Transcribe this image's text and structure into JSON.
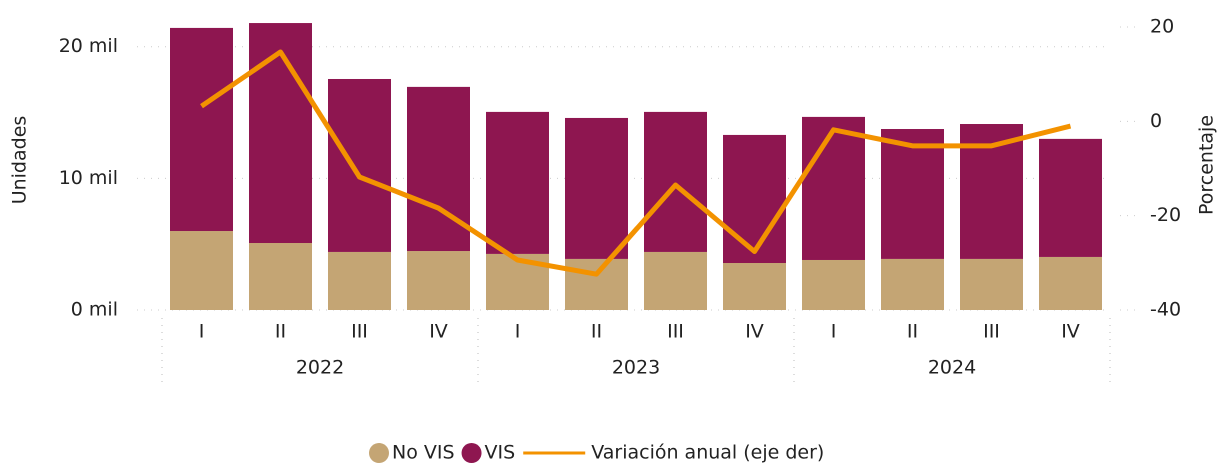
{
  "chart_data": {
    "type": "bar+line",
    "y_label": "Unidades",
    "y2_label": "Porcentaje",
    "categories": [
      "I",
      "II",
      "III",
      "IV",
      "I",
      "II",
      "III",
      "IV",
      "I",
      "II",
      "III",
      "IV"
    ],
    "years": [
      "2022",
      "2023",
      "2024"
    ],
    "series": [
      {
        "name": "No VIS",
        "color": "#c4a574",
        "values": [
          6000,
          5090,
          4410,
          4480,
          4260,
          3880,
          4410,
          3570,
          3800,
          3880,
          3880,
          4030
        ]
      },
      {
        "name": "VIS",
        "color": "#8e1650",
        "values": [
          15430,
          16710,
          13140,
          12470,
          10790,
          10710,
          10640,
          9730,
          10870,
          9870,
          10250,
          8970
        ]
      },
      {
        "name": "Variación anual (eje der)",
        "color": "#f39200",
        "axis": "y2",
        "values": [
          3.2,
          14.7,
          -11.8,
          -18.4,
          -29.4,
          -32.4,
          -13.5,
          -27.6,
          -1.8,
          -5.2,
          -5.2,
          -1.0
        ]
      }
    ],
    "ylim": [
      0,
      21500
    ],
    "yticks": [
      {
        "value": 0,
        "label": "0 mil"
      },
      {
        "value": 10000,
        "label": "10 mil"
      },
      {
        "value": 20000,
        "label": "20 mil"
      }
    ],
    "y2lim": [
      -40,
      20
    ],
    "y2ticks": [
      -40,
      -20,
      0,
      20
    ],
    "grid": true
  }
}
